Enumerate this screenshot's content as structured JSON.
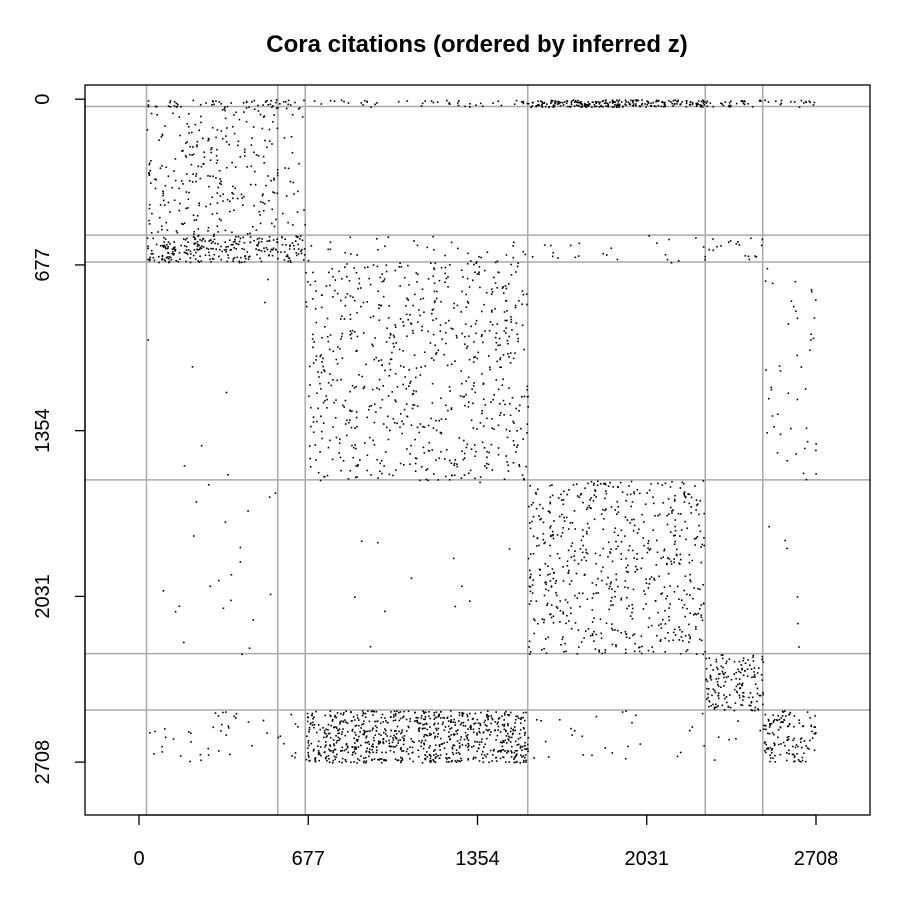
{
  "chart_data": {
    "type": "scatter",
    "title": "Cora citations (ordered by inferred z)",
    "xlabel": "",
    "ylabel": "",
    "xlim": [
      -216,
      2924
    ],
    "ylim": [
      2924,
      -58
    ],
    "y_reversed": true,
    "x_ticks": [
      0,
      677,
      1354,
      2031,
      2708
    ],
    "y_ticks": [
      0,
      677,
      1354,
      2031,
      2708
    ],
    "x_tick_labels": [
      "0",
      "677",
      "1354",
      "2031",
      "2708"
    ],
    "y_tick_labels": [
      "0",
      "677",
      "1354",
      "2031",
      "2708"
    ],
    "block_boundaries": [
      30,
      555,
      665,
      1555,
      2265,
      2495
    ],
    "grid": true,
    "point_color": "#000000",
    "gridline_color": "#aaaaaa",
    "blocks": [
      {
        "x": [
          30,
          665
        ],
        "y": [
          0,
          30
        ],
        "count": 55
      },
      {
        "x": [
          665,
          1555
        ],
        "y": [
          0,
          30
        ],
        "count": 45
      },
      {
        "x": [
          1555,
          2265
        ],
        "y": [
          0,
          30
        ],
        "count": 240
      },
      {
        "x": [
          2265,
          2708
        ],
        "y": [
          0,
          30
        ],
        "count": 45
      },
      {
        "x": [
          30,
          555
        ],
        "y": [
          30,
          555
        ],
        "count": 260
      },
      {
        "x": [
          555,
          665
        ],
        "y": [
          30,
          555
        ],
        "count": 22
      },
      {
        "x": [
          30,
          555
        ],
        "y": [
          555,
          665
        ],
        "count": 230
      },
      {
        "x": [
          555,
          665
        ],
        "y": [
          555,
          665
        ],
        "count": 40
      },
      {
        "x": [
          665,
          1555
        ],
        "y": [
          555,
          665
        ],
        "count": 35
      },
      {
        "x": [
          1555,
          2265
        ],
        "y": [
          555,
          665
        ],
        "count": 25
      },
      {
        "x": [
          2265,
          2495
        ],
        "y": [
          555,
          665
        ],
        "count": 18
      },
      {
        "x": [
          665,
          1555
        ],
        "y": [
          665,
          1555
        ],
        "count": 720
      },
      {
        "x": [
          2495,
          2708
        ],
        "y": [
          665,
          1555
        ],
        "count": 45
      },
      {
        "x": [
          30,
          555
        ],
        "y": [
          665,
          1555
        ],
        "count": 8
      },
      {
        "x": [
          1555,
          2265
        ],
        "y": [
          1555,
          2265
        ],
        "count": 620
      },
      {
        "x": [
          30,
          665
        ],
        "y": [
          1555,
          2265
        ],
        "count": 22
      },
      {
        "x": [
          665,
          1555
        ],
        "y": [
          1555,
          2265
        ],
        "count": 12
      },
      {
        "x": [
          2495,
          2708
        ],
        "y": [
          1555,
          2265
        ],
        "count": 6
      },
      {
        "x": [
          2265,
          2495
        ],
        "y": [
          2265,
          2495
        ],
        "count": 160
      },
      {
        "x": [
          30,
          665
        ],
        "y": [
          2495,
          2708
        ],
        "count": 45
      },
      {
        "x": [
          665,
          1555
        ],
        "y": [
          2495,
          2708
        ],
        "count": 820
      },
      {
        "x": [
          1555,
          2265
        ],
        "y": [
          2495,
          2708
        ],
        "count": 28
      },
      {
        "x": [
          2495,
          2708
        ],
        "y": [
          2495,
          2708
        ],
        "count": 130
      },
      {
        "x": [
          2265,
          2495
        ],
        "y": [
          2495,
          2708
        ],
        "count": 6
      }
    ]
  }
}
